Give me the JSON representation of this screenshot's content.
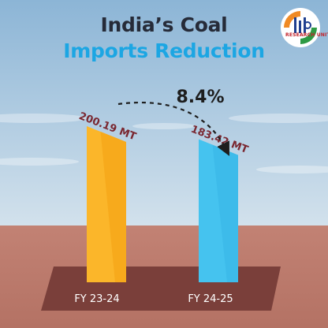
{
  "title": {
    "line1": "India’s Coal",
    "line2": "Imports Reduction"
  },
  "logo": {
    "icon": "pib-logo",
    "text": "RESEARCH UNIT"
  },
  "colors": {
    "sky_top": "#8cb5d6",
    "sky_bottom": "#cfdfeb",
    "ground": "#bb7a6c",
    "platform": "#7a3f3a",
    "bar_fy23": "#fbb62a",
    "bar_fy24": "#45c3ef",
    "value_label": "#7a2730",
    "title_dark": "#262b38",
    "title_accent": "#1ca6e3"
  },
  "chart_data": {
    "type": "bar",
    "categories": [
      "FY 23-24",
      "FY 24-25"
    ],
    "values": [
      200.19,
      183.42
    ],
    "value_labels": [
      "200.19 MT",
      "183.42 MT"
    ],
    "unit": "MT",
    "change_label": "8.4%",
    "change_direction": "decrease",
    "ylim": [
      0,
      220
    ],
    "grid": false,
    "legend": "none"
  }
}
